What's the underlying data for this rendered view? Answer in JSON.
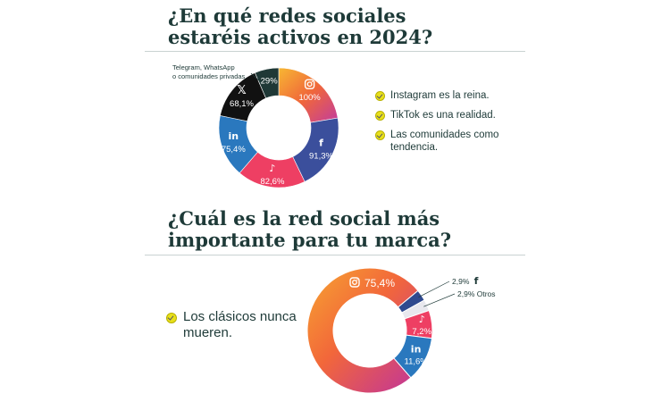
{
  "section1": {
    "title": "¿En qué redes sociales estaréis activos en 2024?",
    "bullets": [
      "Instagram es la reina.",
      "TikTok es una realidad.",
      "Las comunidades como tendencia."
    ]
  },
  "section2": {
    "title": "¿Cuál es la red social más importante para tu marca?",
    "bullets": [
      "Los clásicos nunca mueren."
    ]
  },
  "chart_data": [
    {
      "type": "pie",
      "title": "¿En qué redes sociales estaréis activos en 2024?",
      "categories": [
        "Instagram",
        "Facebook",
        "TikTok",
        "LinkedIn",
        "X",
        "Telegram, WhatsApp o comunidades privadas."
      ],
      "icons": [
        "instagram-icon",
        "facebook-icon",
        "tiktok-icon",
        "linkedin-icon",
        "x-icon",
        null
      ],
      "values": [
        100,
        91.3,
        82.6,
        75.4,
        68.1,
        29
      ],
      "labels": [
        "100%",
        "91,3%",
        "82,6%",
        "75,4%",
        "68,1%",
        "29%"
      ],
      "colors": [
        "#f0673a",
        "#3b4f9c",
        "#ee3f63",
        "#2a78be",
        "#111111",
        "#1f3836"
      ]
    },
    {
      "type": "pie",
      "title": "¿Cuál es la red social más importante para tu marca?",
      "categories": [
        "Instagram",
        "Facebook",
        "Otros",
        "TikTok",
        "LinkedIn"
      ],
      "icons": [
        "instagram-icon",
        "facebook-icon",
        null,
        "tiktok-icon",
        "linkedin-icon"
      ],
      "values": [
        75.4,
        2.9,
        2.9,
        7.2,
        11.6
      ],
      "labels": [
        "75,4%",
        "2,9%",
        "2,9% Otros",
        "7,2%",
        "11,6%"
      ],
      "colors": [
        "#f4883a",
        "#2f4a8f",
        "#e8e8ee",
        "#ee3f63",
        "#2a78be"
      ]
    }
  ]
}
